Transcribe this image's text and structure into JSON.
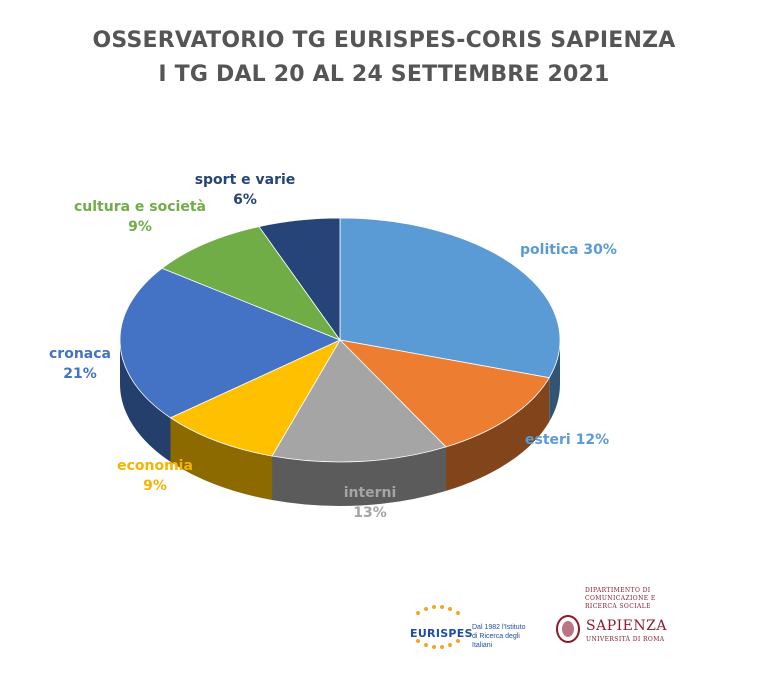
{
  "chart_data": {
    "type": "pie",
    "title_line1": "OSSERVATORIO TG EURISPES-CORIS SAPIENZA",
    "title_line2": "I TG DAL 20 AL 24 SETTEMBRE 2021",
    "slices": [
      {
        "name": "politica",
        "value": 30,
        "label": "politica 30%",
        "color": "#5b9bd5"
      },
      {
        "name": "esteri",
        "value": 12,
        "label": "esteri 12%",
        "color": "#ed7d31"
      },
      {
        "name": "interni",
        "value": 13,
        "label_name": "interni",
        "label_value": "13%",
        "color": "#a5a5a5"
      },
      {
        "name": "economia",
        "value": 9,
        "label_name": "economia",
        "label_value": "9%",
        "color": "#ffc000"
      },
      {
        "name": "cronaca",
        "value": 21,
        "label_name": "cronaca",
        "label_value": "21%",
        "color": "#4472c4"
      },
      {
        "name": "cultura e società",
        "value": 9,
        "label_name": "cultura e società",
        "label_value": "9%",
        "color": "#70ad47"
      },
      {
        "name": "sport e varie",
        "value": 6,
        "label_name": "sport e varie",
        "label_value": "6%",
        "color": "#264478"
      }
    ]
  },
  "logos": {
    "eurispes_name": "EURISPES",
    "eurispes_tagline": "Dal 1982 l'Istituto di Ricerca degli Italiani",
    "sapienza_dept": "Dipartimento di Comunicazione e Ricerca Sociale",
    "sapienza_name": "SAPIENZA",
    "sapienza_sub": "Università di Roma"
  }
}
